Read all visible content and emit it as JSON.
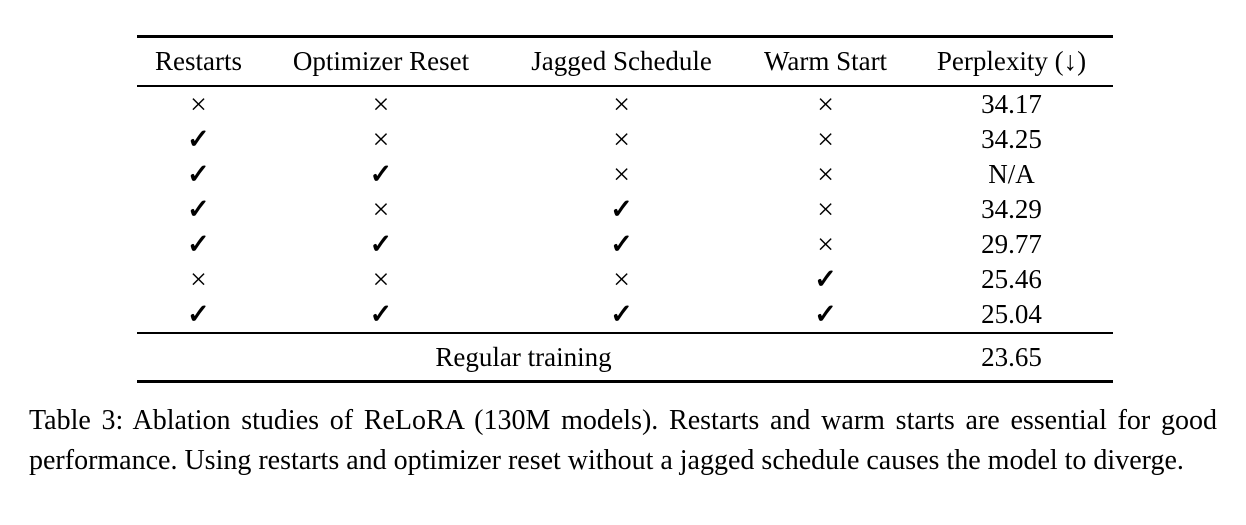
{
  "table": {
    "columns": [
      "Restarts",
      "Optimizer Reset",
      "Jagged Schedule",
      "Warm Start",
      "Perplexity (↓)"
    ],
    "marks": {
      "yes": "✓",
      "no": "×"
    },
    "rows": [
      {
        "restarts": "×",
        "optimizer_reset": "×",
        "jagged_schedule": "×",
        "warm_start": "×",
        "perplexity": "34.17"
      },
      {
        "restarts": "✓",
        "optimizer_reset": "×",
        "jagged_schedule": "×",
        "warm_start": "×",
        "perplexity": "34.25"
      },
      {
        "restarts": "✓",
        "optimizer_reset": "✓",
        "jagged_schedule": "×",
        "warm_start": "×",
        "perplexity": "N/A"
      },
      {
        "restarts": "✓",
        "optimizer_reset": "×",
        "jagged_schedule": "✓",
        "warm_start": "×",
        "perplexity": "34.29"
      },
      {
        "restarts": "✓",
        "optimizer_reset": "✓",
        "jagged_schedule": "✓",
        "warm_start": "×",
        "perplexity": "29.77"
      },
      {
        "restarts": "×",
        "optimizer_reset": "×",
        "jagged_schedule": "×",
        "warm_start": "✓",
        "perplexity": "25.46"
      },
      {
        "restarts": "✓",
        "optimizer_reset": "✓",
        "jagged_schedule": "✓",
        "warm_start": "✓",
        "perplexity": "25.04"
      }
    ],
    "footer": {
      "label": "Regular training",
      "perplexity": "23.65"
    }
  },
  "caption": {
    "text": "Table 3: Ablation studies of ReLoRA (130M models). Restarts and warm starts are essential for good performance. Using restarts and optimizer reset without a jagged schedule causes the model to diverge."
  }
}
